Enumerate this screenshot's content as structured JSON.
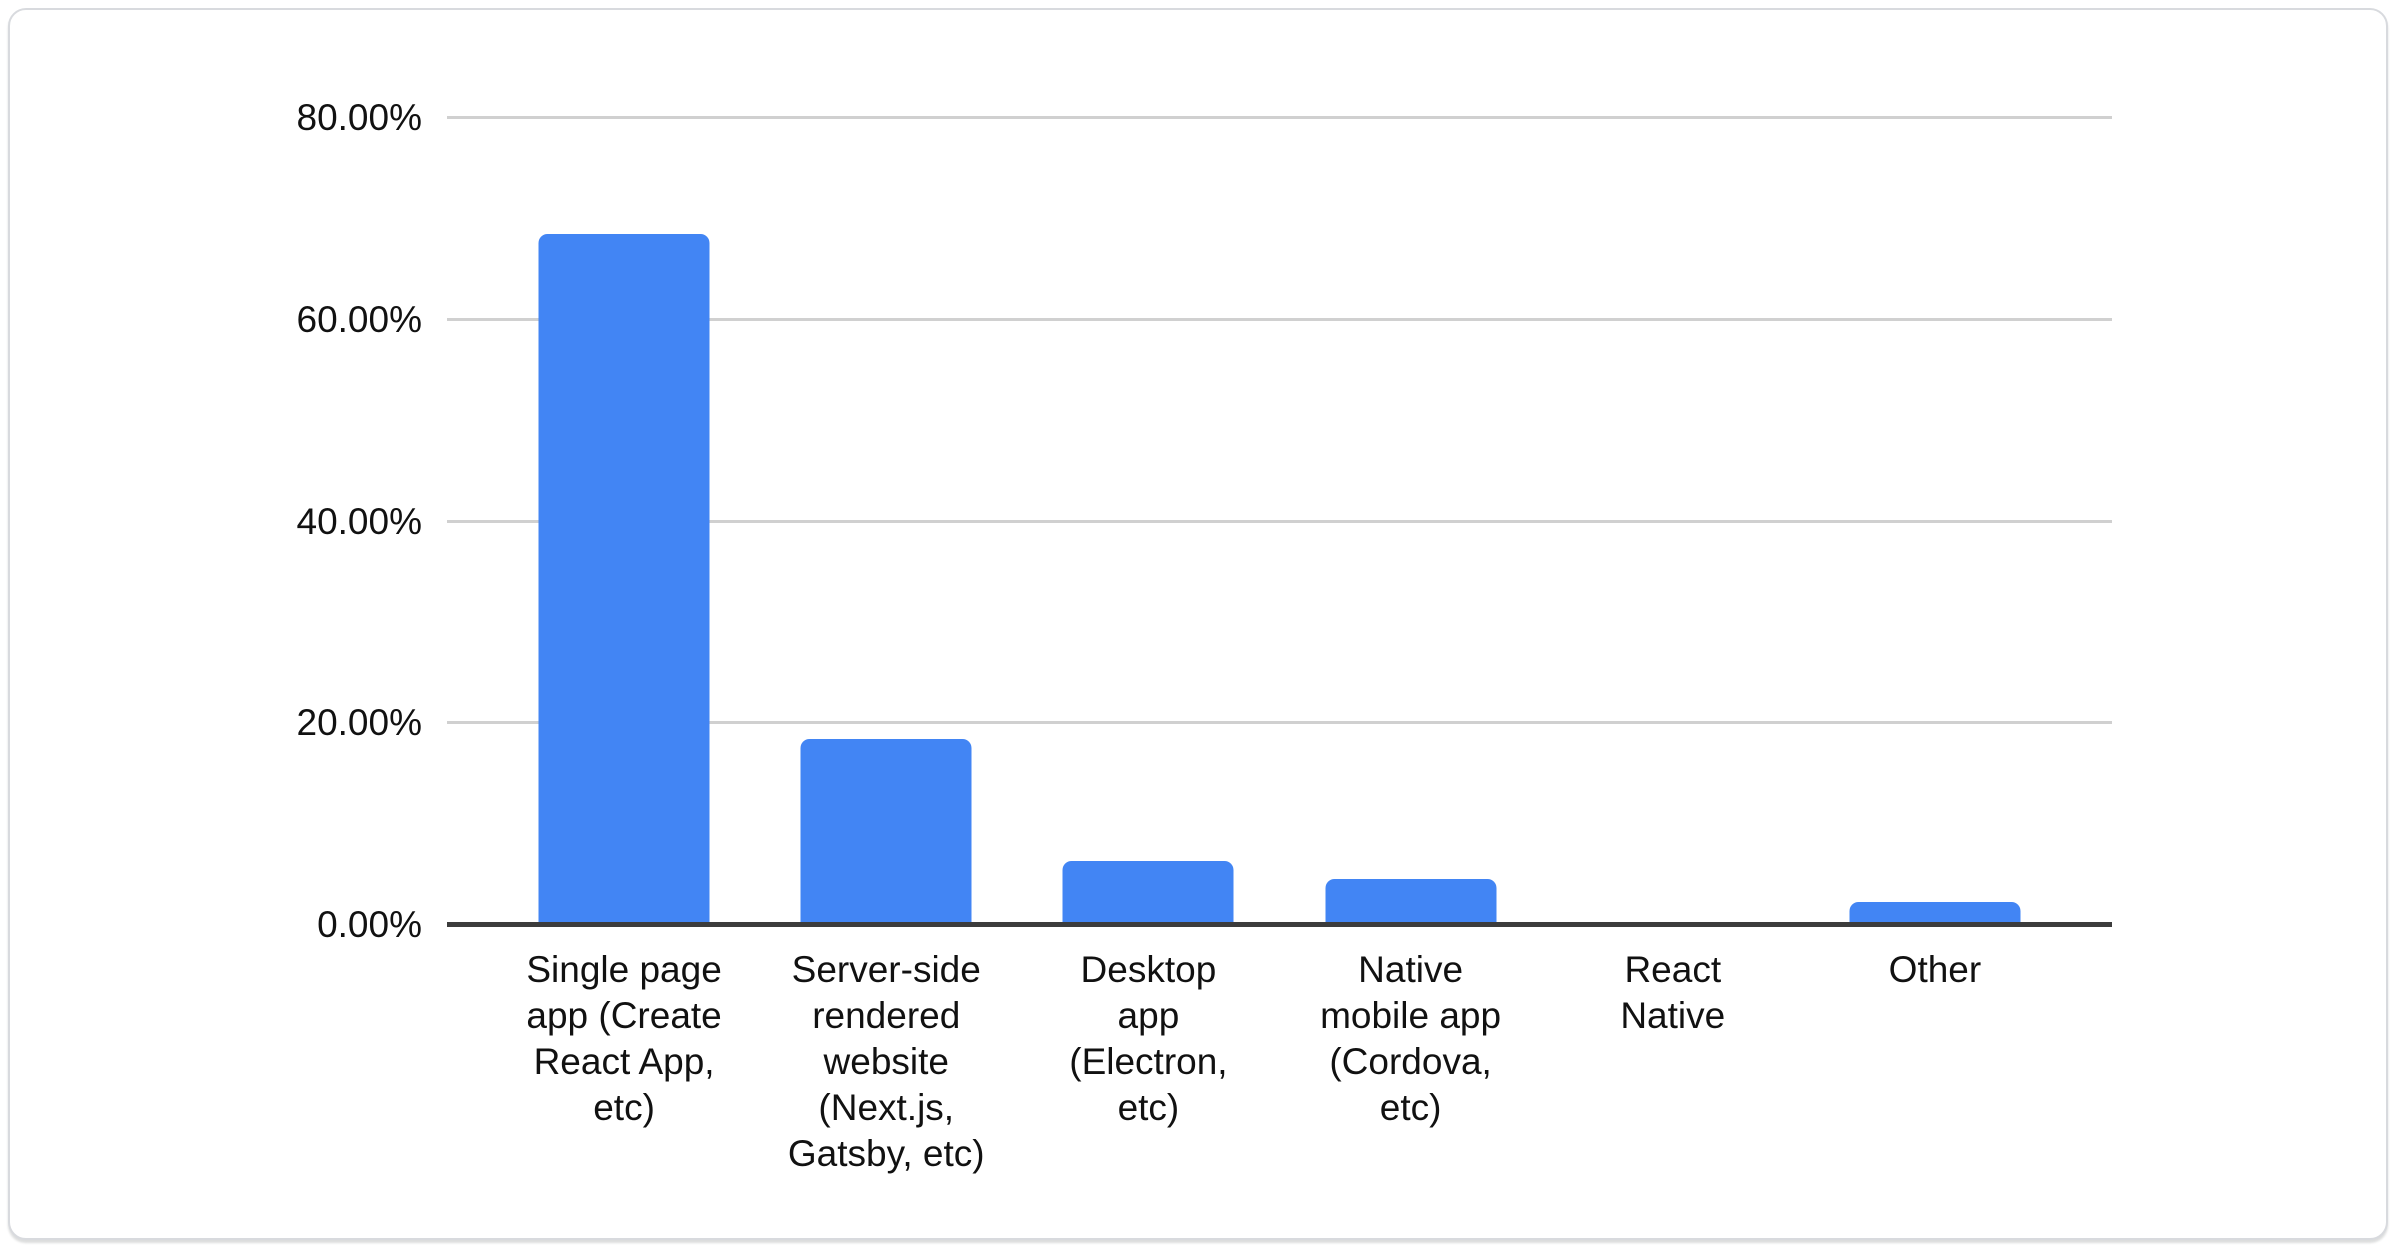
{
  "chart_data": {
    "type": "bar",
    "title": "",
    "xlabel": "",
    "ylabel": "",
    "categories": [
      "Single page app (Create React App, etc)",
      "Server-side rendered website (Next.js, Gatsby, etc)",
      "Desktop app (Electron, etc)",
      "Native mobile app (Cordova, etc)",
      "React Native",
      "Other"
    ],
    "values": [
      68.5,
      18.4,
      6.3,
      4.6,
      0,
      2.3
    ],
    "ylim": [
      0,
      80
    ],
    "yticks": [
      0,
      20,
      40,
      60,
      80
    ],
    "ytick_labels": [
      "0.00%",
      "20.00%",
      "40.00%",
      "60.00%",
      "80.00%"
    ],
    "grid": true,
    "legend": false,
    "bar_color": "#4285f4",
    "gridline_color": "#d0d0d0",
    "axis_color": "#3c3c3c",
    "text_color": "#111111"
  }
}
